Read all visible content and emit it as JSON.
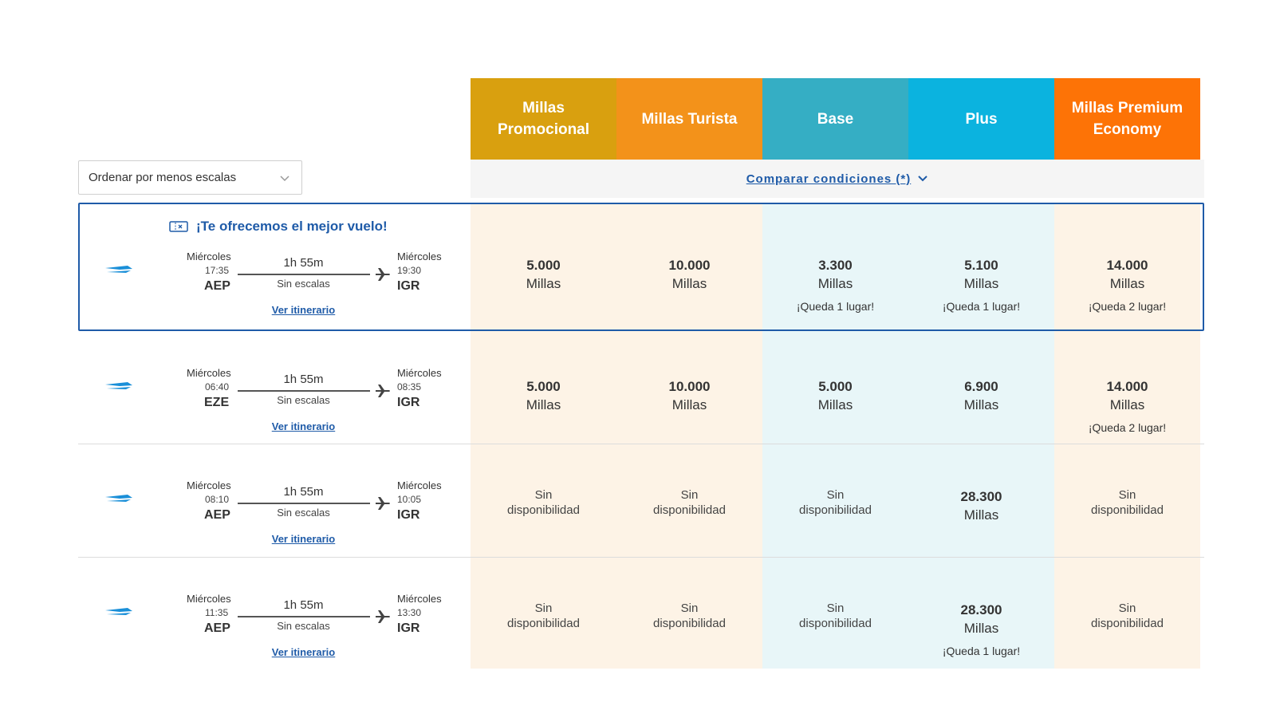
{
  "sort": {
    "label": "Ordenar por menos escalas",
    "icon": "chevron-down-icon"
  },
  "fare_columns": [
    {
      "label": "Millas Promocional",
      "color": "#d9a00f",
      "cell_bg": "#fdf3e6"
    },
    {
      "label": "Millas Turista",
      "color": "#f3921a",
      "cell_bg": "#fdf3e6"
    },
    {
      "label": "Base",
      "color": "#35aec4",
      "cell_bg": "#e8f6f8"
    },
    {
      "label": "Plus",
      "color": "#0bb3df",
      "cell_bg": "#e8f6f8"
    },
    {
      "label": "Millas Premium Economy",
      "color": "#fd7306",
      "cell_bg": "#fdf3e6"
    }
  ],
  "compare": {
    "label": "Comparar condiciones (*)",
    "icon": "chevron-down-icon"
  },
  "best_flight_label": "¡Te ofrecemos el mejor vuelo!",
  "accent_color": "#1f5ba8",
  "flights": [
    {
      "dep_day": "Miércoles",
      "dep_time": "17:35",
      "dep_code": "AEP",
      "arr_day": "Miércoles",
      "arr_time": "19:30",
      "arr_code": "IGR",
      "duration": "1h 55m",
      "stops": "Sin escalas",
      "itinerary": "Ver itinerario",
      "fares": [
        {
          "amount": "5.000",
          "unit": "Millas"
        },
        {
          "amount": "10.000",
          "unit": "Millas"
        },
        {
          "amount": "3.300",
          "unit": "Millas",
          "note": "¡Queda 1 lugar!"
        },
        {
          "amount": "5.100",
          "unit": "Millas",
          "note": "¡Queda 1 lugar!"
        },
        {
          "amount": "14.000",
          "unit": "Millas",
          "note": "¡Queda 2 lugar!"
        }
      ]
    },
    {
      "dep_day": "Miércoles",
      "dep_time": "06:40",
      "dep_code": "EZE",
      "arr_day": "Miércoles",
      "arr_time": "08:35",
      "arr_code": "IGR",
      "duration": "1h 55m",
      "stops": "Sin escalas",
      "itinerary": "Ver itinerario",
      "fares": [
        {
          "amount": "5.000",
          "unit": "Millas"
        },
        {
          "amount": "10.000",
          "unit": "Millas"
        },
        {
          "amount": "5.000",
          "unit": "Millas"
        },
        {
          "amount": "6.900",
          "unit": "Millas"
        },
        {
          "amount": "14.000",
          "unit": "Millas",
          "note": "¡Queda 2 lugar!"
        }
      ]
    },
    {
      "dep_day": "Miércoles",
      "dep_time": "08:10",
      "dep_code": "AEP",
      "arr_day": "Miércoles",
      "arr_time": "10:05",
      "arr_code": "IGR",
      "duration": "1h 55m",
      "stops": "Sin escalas",
      "itinerary": "Ver itinerario",
      "fares": [
        {
          "na": "Sin disponibilidad"
        },
        {
          "na": "Sin disponibilidad"
        },
        {
          "na": "Sin disponibilidad"
        },
        {
          "amount": "28.300",
          "unit": "Millas"
        },
        {
          "na": "Sin disponibilidad"
        }
      ]
    },
    {
      "dep_day": "Miércoles",
      "dep_time": "11:35",
      "dep_code": "AEP",
      "arr_day": "Miércoles",
      "arr_time": "13:30",
      "arr_code": "IGR",
      "duration": "1h 55m",
      "stops": "Sin escalas",
      "itinerary": "Ver itinerario",
      "fares": [
        {
          "na": "Sin disponibilidad"
        },
        {
          "na": "Sin disponibilidad"
        },
        {
          "na": "Sin disponibilidad"
        },
        {
          "amount": "28.300",
          "unit": "Millas",
          "note": "¡Queda 1 lugar!"
        },
        {
          "na": "Sin disponibilidad"
        }
      ]
    }
  ]
}
